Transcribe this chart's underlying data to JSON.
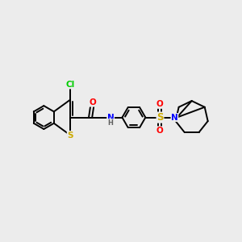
{
  "background_color": "#ececec",
  "figsize": [
    3.0,
    3.0
  ],
  "dpi": 100,
  "atom_colors": {
    "C": "#000000",
    "H": "#606060",
    "N": "#0000ff",
    "O": "#ff0000",
    "S_thio": "#ccaa00",
    "S_sulfonyl": "#ccaa00",
    "Cl": "#00cc00"
  },
  "bond_color": "#000000",
  "bond_width": 1.4,
  "font_size_atom": 7.5,
  "font_size_h": 6.0
}
